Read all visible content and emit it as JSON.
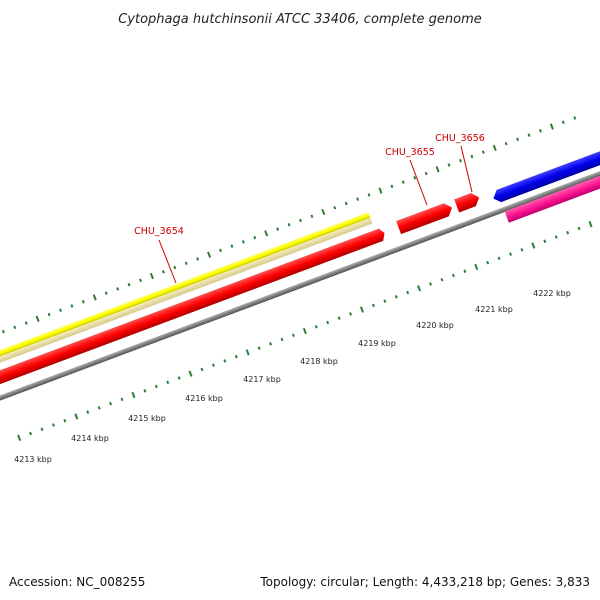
{
  "title": "Cytophaga hutchinsonii ATCC 33406, complete genome",
  "footer": {
    "accession": "Accession: NC_008255",
    "summary": "Topology: circular; Length: 4,433,218 bp; Genes: 3,833"
  },
  "colors": {
    "backbone": "#808080",
    "tick": "#2e7d32",
    "label": "#cc0000",
    "yellow_feature": "#ffff00",
    "khaki_feature": "#e8dc9c",
    "red_feature": "#ff0000",
    "blue_feature": "#0000ee",
    "pink_feature": "#ff1493"
  },
  "genes": [
    {
      "label": "CHU_3654"
    },
    {
      "label": "CHU_3655"
    },
    {
      "label": "CHU_3656"
    }
  ],
  "scale_labels": [
    "4213 kbp",
    "4214 kbp",
    "4215 kbp",
    "4216 kbp",
    "4217 kbp",
    "4218 kbp",
    "4219 kbp",
    "4220 kbp",
    "4221 kbp",
    "4222 kbp"
  ]
}
